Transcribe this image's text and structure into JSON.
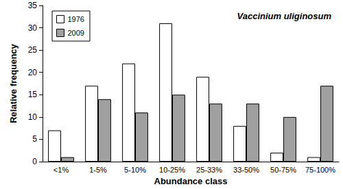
{
  "chart_data": {
    "type": "bar",
    "title": "Vaccinium uliginosum",
    "x_label": "Abundance class",
    "y_label": "Relative frequency",
    "categories": [
      "<1%",
      "1-5%",
      "5-10%",
      "10-25%",
      "25-33%",
      "33-50%",
      "50-75%",
      "75-100%"
    ],
    "series": [
      {
        "name": "1976",
        "color": "#ffffff",
        "values": [
          7,
          17,
          22,
          31,
          19,
          8,
          2,
          1
        ]
      },
      {
        "name": "2009",
        "color": "#a0a0a0",
        "values": [
          1,
          14,
          11,
          15,
          13,
          13,
          10,
          17
        ]
      }
    ],
    "ylim": [
      0,
      35
    ],
    "yticks": [
      0,
      5,
      10,
      15,
      20,
      25,
      30,
      35
    ],
    "grid": false,
    "legend": "upper left"
  }
}
